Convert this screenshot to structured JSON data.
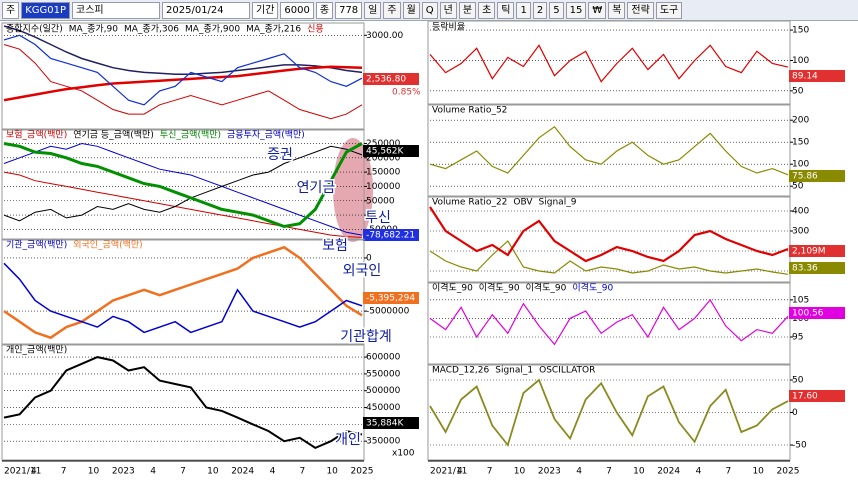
{
  "toolbar": {
    "items": [
      "주",
      "KGG01P",
      "코스피",
      "2025/01/24",
      "기간",
      "6000",
      "종",
      "778",
      "일",
      "주",
      "월",
      "Q",
      "년",
      "분",
      "초",
      "틱",
      "1",
      "2",
      "5",
      "15",
      "₩",
      "복",
      "전략",
      "도구"
    ]
  },
  "x_labels": [
    "2021/11",
    "4",
    "7",
    "10",
    "2023",
    "4",
    "7",
    "10",
    "2024",
    "4",
    "7",
    "10",
    "2025"
  ],
  "annotations": [
    "증권",
    "연기금",
    "투신",
    "보험",
    "외국인",
    "기관합계",
    "개인"
  ],
  "left_panels": [
    {
      "legend": [
        {
          "text": "종합지수(일간)",
          "color": "#000000"
        },
        {
          "text": "MA_종가,90",
          "color": "#000000"
        },
        {
          "text": "MA_종가,306",
          "color": "#000000"
        },
        {
          "text": "MA_종가,900",
          "color": "#000000"
        },
        {
          "text": "MA_종가,216",
          "color": "#000000"
        },
        {
          "text": "신용",
          "color": "#d00000"
        }
      ],
      "ylim": [
        2000,
        3100
      ],
      "yticks": [
        {
          "value": 3000,
          "label": "3000.00"
        }
      ],
      "series": [
        {
          "color": "#d00000",
          "width": 1,
          "values": [
            2900,
            2850,
            2700,
            2500,
            2450,
            2400,
            2300,
            2200,
            2150,
            2150,
            2250,
            2300,
            2350,
            2300,
            2250,
            2300,
            2350,
            2400,
            2300,
            2200,
            2150,
            2100,
            2150,
            2250
          ]
        },
        {
          "color": "#202060",
          "width": 1.5,
          "values": [
            3100,
            3050,
            2980,
            2900,
            2820,
            2750,
            2700,
            2650,
            2620,
            2600,
            2590,
            2580,
            2580,
            2590,
            2600,
            2620,
            2640,
            2660,
            2680,
            2680,
            2670,
            2650,
            2620,
            2600
          ]
        },
        {
          "color": "#e00000",
          "width": 2.5,
          "values": [
            2300,
            2330,
            2360,
            2390,
            2420,
            2440,
            2460,
            2480,
            2490,
            2500,
            2510,
            2520,
            2530,
            2540,
            2550,
            2560,
            2580,
            2600,
            2620,
            2640,
            2650,
            2660,
            2655,
            2650
          ]
        },
        {
          "color": "#1030d0",
          "width": 1.2,
          "values": [
            2950,
            3000,
            2900,
            2750,
            2700,
            2650,
            2600,
            2450,
            2300,
            2250,
            2400,
            2450,
            2600,
            2550,
            2500,
            2650,
            2700,
            2750,
            2800,
            2650,
            2600,
            2500,
            2450,
            2536.8
          ]
        }
      ],
      "tags": [
        {
          "text": "2,536.80",
          "color": "#e03030",
          "box": true
        },
        {
          "text": "0.85%",
          "color": "#e03030",
          "box": false
        }
      ]
    },
    {
      "legend": [
        {
          "text": "보험_금액(백만)",
          "color": "#d00000"
        },
        {
          "text": "연기금 등_금액(백만)",
          "color": "#000000"
        },
        {
          "text": "투신_금액(백만)",
          "color": "#008000"
        },
        {
          "text": "금융투자_금액(백만)",
          "color": "#0000c0"
        }
      ],
      "ylim": [
        -80000,
        290000
      ],
      "yticks": [
        250000,
        200000,
        150000,
        100000,
        50000,
        0,
        -50000
      ],
      "series": [
        {
          "color": "#d00000",
          "width": 1,
          "values": [
            150000,
            140000,
            120000,
            110000,
            100000,
            90000,
            80000,
            70000,
            60000,
            50000,
            40000,
            30000,
            20000,
            10000,
            0,
            -10000,
            -20000,
            -30000,
            -40000,
            -50000,
            -60000,
            -70000,
            -75000,
            -78000
          ]
        },
        {
          "color": "#0000d0",
          "width": 1,
          "values": [
            180000,
            200000,
            220000,
            240000,
            230000,
            250000,
            240000,
            220000,
            200000,
            180000,
            160000,
            150000,
            140000,
            120000,
            100000,
            80000,
            60000,
            40000,
            20000,
            0,
            -20000,
            -40000,
            -60000,
            -70000
          ]
        },
        {
          "color": "#000000",
          "width": 1,
          "values": [
            0,
            -20000,
            10000,
            20000,
            -10000,
            0,
            30000,
            20000,
            40000,
            20000,
            10000,
            30000,
            60000,
            80000,
            100000,
            120000,
            140000,
            150000,
            180000,
            200000,
            220000,
            240000,
            230000,
            210000
          ]
        },
        {
          "color": "#009000",
          "width": 3,
          "values": [
            250000,
            240000,
            220000,
            215000,
            200000,
            180000,
            170000,
            150000,
            130000,
            110000,
            100000,
            80000,
            60000,
            40000,
            20000,
            10000,
            0,
            -20000,
            -40000,
            -30000,
            20000,
            120000,
            220000,
            250000
          ]
        }
      ],
      "tags": [
        {
          "text": "45,562K",
          "color": "#000000",
          "box": true
        },
        {
          "text": "-78,682.21",
          "color": "#2030e0",
          "box": true
        }
      ]
    },
    {
      "legend": [
        {
          "text": "기관_금액(백만)",
          "color": "#0000c0"
        },
        {
          "text": "외국인_금액(백만)",
          "color": "#f07020"
        }
      ],
      "ylim": [
        -8000000,
        1500000
      ],
      "yticks": [
        0,
        -5000000
      ],
      "series": [
        {
          "color": "#f07020",
          "width": 2.5,
          "values": [
            -5000000,
            -6000000,
            -7000000,
            -7500000,
            -6500000,
            -6000000,
            -5000000,
            -4000000,
            -3500000,
            -3000000,
            -3500000,
            -3000000,
            -2500000,
            -2000000,
            -1500000,
            -1000000,
            0,
            500000,
            1000000,
            0,
            -1500000,
            -3000000,
            -4500000,
            -5395294
          ]
        },
        {
          "color": "#0000d0",
          "width": 1.5,
          "values": [
            -500000,
            -2000000,
            -4000000,
            -5000000,
            -5500000,
            -6000000,
            -6500000,
            -5500000,
            -6000000,
            -7000000,
            -6500000,
            -6000000,
            -7000000,
            -6500000,
            -6000000,
            -3000000,
            -5000000,
            -5500000,
            -6000000,
            -6500000,
            -6000000,
            -5000000,
            -4000000,
            -4500000
          ]
        }
      ],
      "tags": [
        {
          "text": "-5,395,294",
          "color": "#f07020",
          "box": true
        }
      ]
    },
    {
      "legend": [
        {
          "text": "개인_금액(백만)",
          "color": "#000000"
        }
      ],
      "ylim": [
        300000,
        630000
      ],
      "yticks": [
        600000,
        550000,
        500000,
        450000,
        400000,
        350000
      ],
      "series": [
        {
          "color": "#000000",
          "width": 2,
          "values": [
            420000,
            430000,
            480000,
            500000,
            560000,
            580000,
            600000,
            590000,
            560000,
            570000,
            530000,
            520000,
            510000,
            450000,
            440000,
            420000,
            400000,
            380000,
            350000,
            360000,
            330000,
            350000,
            380000,
            370000
          ]
        }
      ],
      "tags": [
        {
          "text": "35,884K",
          "color": "#000000",
          "box": true
        },
        {
          "text": "x100",
          "color": "#000000",
          "box": false
        }
      ]
    }
  ],
  "right_panels": [
    {
      "legend": [
        {
          "text": "등락비율",
          "color": "#000000"
        }
      ],
      "ylim": [
        30,
        160
      ],
      "yticks": [
        150,
        100,
        50
      ],
      "series": [
        {
          "color": "#e00000",
          "width": 1.2,
          "values": [
            110,
            80,
            95,
            120,
            70,
            105,
            90,
            125,
            75,
            100,
            115,
            65,
            95,
            120,
            85,
            110,
            70,
            100,
            125,
            90,
            80,
            115,
            95,
            89.14
          ]
        }
      ],
      "tags": [
        {
          "text": "89.14",
          "color": "#e03030",
          "box": true
        }
      ]
    },
    {
      "legend": [
        {
          "text": "Volume Ratio_52",
          "color": "#000000"
        }
      ],
      "ylim": [
        30,
        230
      ],
      "yticks": [
        200,
        150,
        100,
        50
      ],
      "series": [
        {
          "color": "#8a8a00",
          "width": 1.2,
          "values": [
            100,
            90,
            110,
            130,
            95,
            80,
            120,
            160,
            185,
            140,
            110,
            100,
            130,
            150,
            120,
            100,
            110,
            140,
            170,
            130,
            95,
            80,
            90,
            75.86
          ]
        }
      ],
      "tags": [
        {
          "text": "75.86",
          "color": "#8a8a00",
          "box": true
        }
      ]
    },
    {
      "legend": [
        {
          "text": "Volume Ratio_22",
          "color": "#000000"
        },
        {
          "text": "OBV",
          "color": "#000000"
        },
        {
          "text": "Signal_9",
          "color": "#000000"
        }
      ],
      "ylim": [
        50,
        460
      ],
      "yticks": [
        400,
        300,
        200,
        100
      ],
      "series": [
        {
          "color": "#8a8a00",
          "width": 1.2,
          "values": [
            200,
            150,
            120,
            100,
            180,
            250,
            120,
            100,
            90,
            150,
            100,
            120,
            110,
            90,
            100,
            130,
            110,
            120,
            100,
            90,
            100,
            110,
            95,
            83.36
          ]
        },
        {
          "color": "#e00000",
          "width": 2.2,
          "values": [
            420,
            300,
            250,
            200,
            230,
            180,
            300,
            350,
            250,
            200,
            150,
            180,
            220,
            200,
            170,
            150,
            200,
            280,
            300,
            260,
            230,
            200,
            180,
            210
          ]
        }
      ],
      "tags": [
        {
          "text": "2,109M",
          "color": "#e03030",
          "box": true
        },
        {
          "text": "83.36",
          "color": "#8a8a00",
          "box": true
        }
      ]
    },
    {
      "legend": [
        {
          "text": "이격도_90",
          "color": "#000000"
        },
        {
          "text": "이격도_90",
          "color": "#000000"
        },
        {
          "text": "이격도_90",
          "color": "#000000"
        },
        {
          "text": "이격도_90",
          "color": "#0000c0"
        }
      ],
      "ylim": [
        88,
        109
      ],
      "yticks": [
        105,
        100,
        95
      ],
      "series": [
        {
          "color": "#e000e0",
          "width": 1.2,
          "values": [
            100,
            97,
            103,
            95,
            101,
            96,
            104,
            98,
            93,
            100,
            102,
            96,
            99,
            101,
            95,
            103,
            97,
            100,
            105,
            98,
            94,
            97,
            96,
            100.56
          ]
        }
      ],
      "tags": [
        {
          "text": "100.56",
          "color": "#e000e0",
          "box": true
        }
      ]
    },
    {
      "legend": [
        {
          "text": "MACD_12,26",
          "color": "#000000"
        },
        {
          "text": "Signal_1",
          "color": "#000000"
        },
        {
          "text": "OSCILLATOR",
          "color": "#000000"
        }
      ],
      "ylim": [
        -70,
        70
      ],
      "yticks": [
        50,
        0,
        -50
      ],
      "series": [
        {
          "color": "#8a8a20",
          "width": 1.8,
          "values": [
            10,
            -30,
            20,
            40,
            -20,
            -50,
            30,
            50,
            -10,
            -40,
            20,
            45,
            0,
            -35,
            25,
            40,
            -15,
            -45,
            10,
            35,
            -30,
            -20,
            5,
            17.6
          ]
        }
      ],
      "tags": [
        {
          "text": "17.60",
          "color": "#e03030",
          "box": true
        }
      ]
    }
  ]
}
